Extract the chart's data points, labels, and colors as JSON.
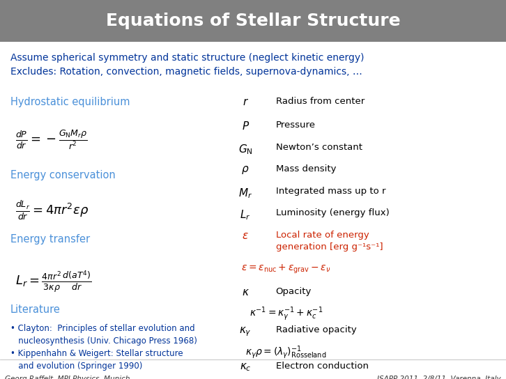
{
  "title": "Equations of Stellar Structure",
  "title_bg_color": "#808080",
  "title_text_color": "#ffffff",
  "body_bg_color": "#ffffff",
  "assume_text": "Assume spherical symmetry and static structure (neglect kinetic energy)\nExcludes: Rotation, convection, magnetic fields, supernova-dynamics, …",
  "assume_color": "#003399",
  "section_color": "#4a90d9",
  "equation_color": "#000000",
  "red_color": "#cc2200",
  "footer_left": "Georg Raffelt, MPI Physics, Munich",
  "footer_right": "ISAPP 2011, 2/8/11, Varenna, Italy",
  "footer_color": "#333333"
}
